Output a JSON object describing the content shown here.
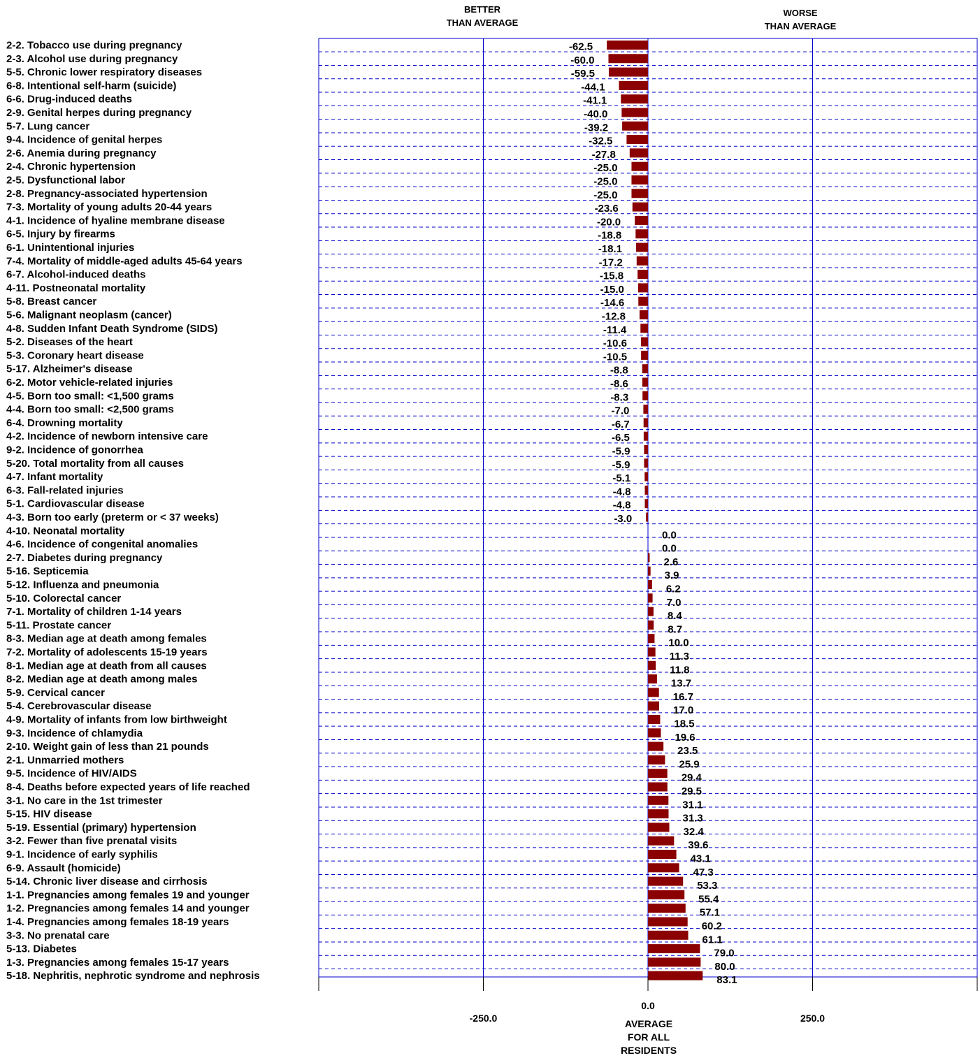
{
  "chart_data": {
    "type": "bar",
    "orientation": "horizontal",
    "header_left": [
      "BETTER",
      "THAN AVERAGE"
    ],
    "header_right": [
      "WORSE",
      "THAN AVERAGE"
    ],
    "xlim": [
      -500,
      500
    ],
    "x_ticks": [
      "-250.0",
      "0.0",
      "250.0"
    ],
    "x_tick_values": [
      -250,
      0,
      250
    ],
    "center_caption": [
      "AVERAGE",
      "FOR ALL",
      "RESIDENTS"
    ],
    "grid": true,
    "bar_color": "#8B0000",
    "frame_color": "#0000CC",
    "categories": [
      "2-2. Tobacco use during pregnancy",
      "2-3. Alcohol use during pregnancy",
      "5-5. Chronic lower respiratory diseases",
      "6-8. Intentional self-harm (suicide)",
      "6-6. Drug-induced deaths",
      "2-9. Genital herpes during pregnancy",
      "5-7. Lung cancer",
      "9-4. Incidence of genital herpes",
      "2-6. Anemia during pregnancy",
      "2-4. Chronic hypertension",
      "2-5. Dysfunctional labor",
      "2-8. Pregnancy-associated hypertension",
      "7-3. Mortality of young adults 20-44 years",
      "4-1. Incidence of hyaline membrane disease",
      "6-5. Injury by firearms",
      "6-1. Unintentional injuries",
      "7-4. Mortality of middle-aged adults 45-64 years",
      "6-7. Alcohol-induced deaths",
      "4-11. Postneonatal mortality",
      "5-8. Breast cancer",
      "5-6. Malignant neoplasm (cancer)",
      "4-8. Sudden Infant Death Syndrome (SIDS)",
      "5-2. Diseases of the heart",
      "5-3. Coronary heart disease",
      "5-17. Alzheimer's disease",
      "6-2. Motor vehicle-related injuries",
      "4-5. Born too small: <1,500 grams",
      "4-4. Born too small: <2,500 grams",
      "6-4. Drowning mortality",
      "4-2. Incidence of newborn intensive care",
      "9-2. Incidence of gonorrhea",
      "5-20. Total mortality from all causes",
      "4-7. Infant mortality",
      "6-3. Fall-related injuries",
      "5-1. Cardiovascular disease",
      "4-3. Born too early (preterm or < 37 weeks)",
      "4-10. Neonatal mortality",
      "4-6. Incidence of congenital anomalies",
      "2-7. Diabetes during pregnancy",
      "5-16. Septicemia",
      "5-12. Influenza and pneumonia",
      "5-10. Colorectal cancer",
      "7-1. Mortality of children 1-14 years",
      "5-11. Prostate cancer",
      "8-3. Median age at death among females",
      "7-2. Mortality of adolescents 15-19 years",
      "8-1. Median age at death from all causes",
      "8-2. Median age at death among males",
      "5-9. Cervical cancer",
      "5-4. Cerebrovascular disease",
      "4-9. Mortality of infants from low birthweight",
      "9-3. Incidence of chlamydia",
      "2-10. Weight gain of less than 21 pounds",
      "2-1. Unmarried mothers",
      "9-5. Incidence of HIV/AIDS",
      "8-4. Deaths before expected years of life reached",
      "3-1. No care in the 1st trimester",
      "5-15. HIV disease",
      "5-19. Essential (primary) hypertension",
      "3-2. Fewer than five prenatal visits",
      "9-1. Incidence of early syphilis",
      "6-9. Assault (homicide)",
      "5-14. Chronic liver disease and cirrhosis",
      "1-1. Pregnancies among females 19 and younger",
      "1-2. Pregnancies among females 14 and younger",
      "1-4. Pregnancies among females 18-19 years",
      "3-3. No prenatal care",
      "5-13. Diabetes",
      "1-3. Pregnancies among females 15-17 years",
      "5-18. Nephritis, nephrotic syndrome and nephrosis"
    ],
    "values": [
      -62.5,
      -60.0,
      -59.5,
      -44.1,
      -41.1,
      -40.0,
      -39.2,
      -32.5,
      -27.8,
      -25.0,
      -25.0,
      -25.0,
      -23.6,
      -20.0,
      -18.8,
      -18.1,
      -17.2,
      -15.8,
      -15.0,
      -14.6,
      -12.8,
      -11.4,
      -10.6,
      -10.5,
      -8.8,
      -8.6,
      -8.3,
      -7.0,
      -6.7,
      -6.5,
      -5.9,
      -5.9,
      -5.1,
      -4.8,
      -4.8,
      -3.0,
      0.0,
      0.0,
      2.6,
      3.9,
      6.2,
      7.0,
      8.4,
      8.7,
      10.0,
      11.3,
      11.8,
      13.7,
      16.7,
      17.0,
      18.5,
      19.6,
      23.5,
      25.9,
      29.4,
      29.5,
      31.1,
      31.3,
      32.4,
      39.6,
      43.1,
      47.3,
      53.3,
      55.4,
      57.1,
      60.2,
      61.1,
      79.0,
      80.0,
      83.1
    ],
    "value_labels": [
      "-62.5",
      "-60.0",
      "-59.5",
      "-44.1",
      "-41.1",
      "-40.0",
      "-39.2",
      "-32.5",
      "-27.8",
      "-25.0",
      "-25.0",
      "-25.0",
      "-23.6",
      "-20.0",
      "-18.8",
      "-18.1",
      "-17.2",
      "-15.8",
      "-15.0",
      "-14.6",
      "-12.8",
      "-11.4",
      "-10.6",
      "-10.5",
      "-8.8",
      "-8.6",
      "-8.3",
      "-7.0",
      "-6.7",
      "-6.5",
      "-5.9",
      "-5.9",
      "-5.1",
      "-4.8",
      "-4.8",
      "-3.0",
      "0.0",
      "0.0",
      "2.6",
      "3.9",
      "6.2",
      "7.0",
      "8.4",
      "8.7",
      "10.0",
      "11.3",
      "11.8",
      "13.7",
      "16.7",
      "17.0",
      "18.5",
      "19.6",
      "23.5",
      "25.9",
      "29.4",
      "29.5",
      "31.1",
      "31.3",
      "32.4",
      "39.6",
      "43.1",
      "47.3",
      "53.3",
      "55.4",
      "57.1",
      "60.2",
      "61.1",
      "79.0",
      "80.0",
      "83.1"
    ]
  }
}
